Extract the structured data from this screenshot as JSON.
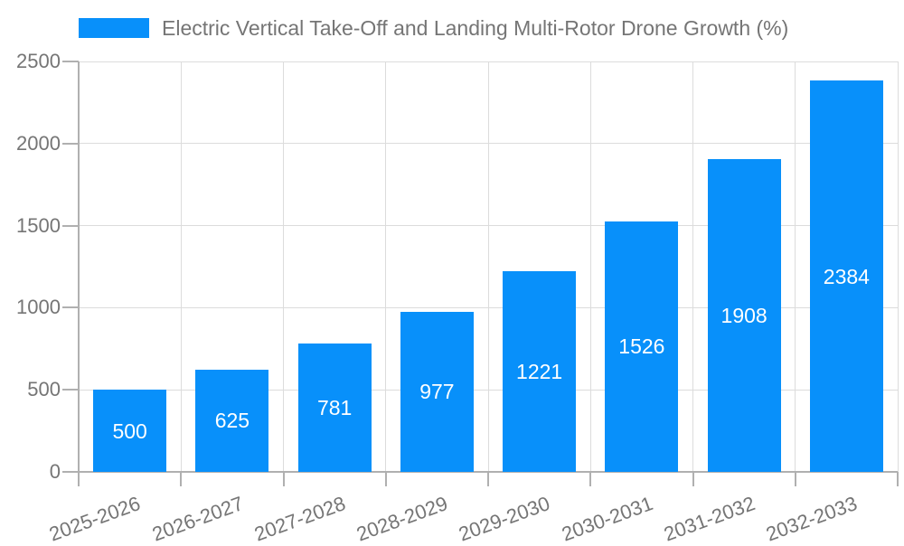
{
  "legend": {
    "label": "Electric Vertical Take-Off and Landing Multi-Rotor Drone Growth (%)"
  },
  "chart_data": {
    "type": "bar",
    "title": "",
    "series_name": "Electric Vertical Take-Off and Landing Multi-Rotor Drone Growth (%)",
    "categories": [
      "2025-2026",
      "2026-2027",
      "2027-2028",
      "2028-2029",
      "2029-2030",
      "2030-2031",
      "2031-2032",
      "2032-2033"
    ],
    "values": [
      500,
      625,
      781,
      977,
      1221,
      1526,
      1908,
      2384
    ],
    "xlabel": "",
    "ylabel": "",
    "ylim": [
      0,
      2500
    ],
    "yticks": [
      0,
      500,
      1000,
      1500,
      2000,
      2500
    ],
    "grid": true,
    "legend_position": "top",
    "bar_color": "#0890fa",
    "value_label_color": "#ffffff",
    "axis_text_color": "#757575",
    "grid_color": "#dcdcdc",
    "axis_line_color": "#b0b0b0"
  }
}
